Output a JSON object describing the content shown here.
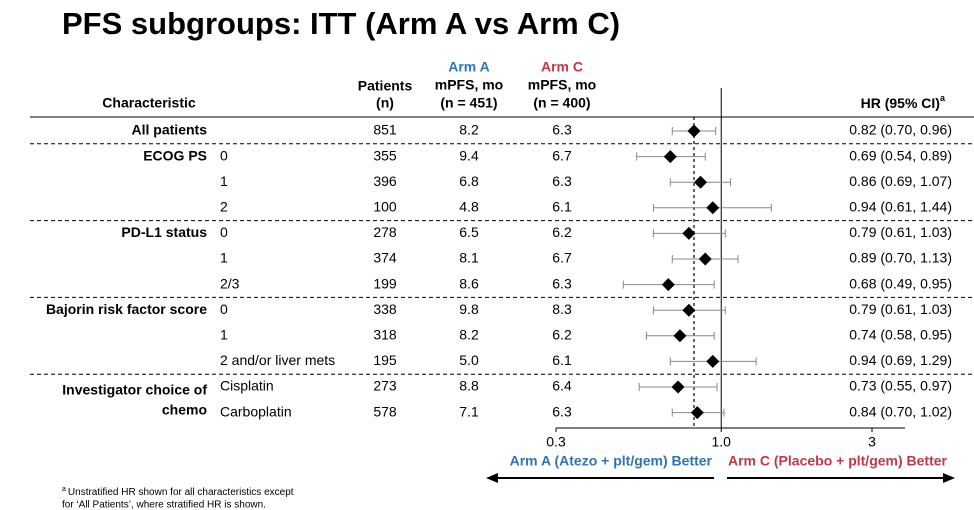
{
  "chart_data": {
    "type": "forest",
    "title": "PFS subgroups: ITT (Arm A vs Arm C)",
    "headers": {
      "characteristic": "Characteristic",
      "patients": [
        "Patients",
        "(n)"
      ],
      "arm_a": [
        "Arm A",
        "mPFS, mo",
        "(n = 451)"
      ],
      "arm_c": [
        "Arm C",
        "mPFS, mo",
        "(n = 400)"
      ],
      "hr": "HR (95% CI)",
      "hr_note": "a"
    },
    "arm_a_color": "#2e75b6",
    "arm_c_color": "#c0394b",
    "groups": [
      {
        "label": [
          "All patients"
        ],
        "rows": [
          {
            "patients": 851,
            "arm_a": "8.2",
            "arm_c": "6.3",
            "hr": 0.82,
            "ci": [
              0.7,
              0.96
            ],
            "hr_label": "0.82 (0.70, 0.96)"
          }
        ]
      },
      {
        "label": [
          "ECOG PS"
        ],
        "rows": [
          {
            "subgroup": "0",
            "patients": 355,
            "arm_a": "9.4",
            "arm_c": "6.7",
            "hr": 0.69,
            "ci": [
              0.54,
              0.89
            ],
            "hr_label": "0.69 (0.54, 0.89)"
          },
          {
            "subgroup": "1",
            "patients": 396,
            "arm_a": "6.8",
            "arm_c": "6.3",
            "hr": 0.86,
            "ci": [
              0.69,
              1.07
            ],
            "hr_label": "0.86 (0.69, 1.07)"
          },
          {
            "subgroup": "2",
            "patients": 100,
            "arm_a": "4.8",
            "arm_c": "6.1",
            "hr": 0.94,
            "ci": [
              0.61,
              1.44
            ],
            "hr_label": "0.94 (0.61, 1.44)"
          }
        ]
      },
      {
        "label": [
          "PD-L1 status"
        ],
        "rows": [
          {
            "subgroup": "0",
            "patients": 278,
            "arm_a": "6.5",
            "arm_c": "6.2",
            "hr": 0.79,
            "ci": [
              0.61,
              1.03
            ],
            "hr_label": "0.79 (0.61, 1.03)"
          },
          {
            "subgroup": "1",
            "patients": 374,
            "arm_a": "8.1",
            "arm_c": "6.7",
            "hr": 0.89,
            "ci": [
              0.7,
              1.13
            ],
            "hr_label": "0.89 (0.70, 1.13)"
          },
          {
            "subgroup": "2/3",
            "patients": 199,
            "arm_a": "8.6",
            "arm_c": "6.3",
            "hr": 0.68,
            "ci": [
              0.49,
              0.95
            ],
            "hr_label": "0.68 (0.49, 0.95)"
          }
        ]
      },
      {
        "label": [
          "Bajorin risk factor score"
        ],
        "rows": [
          {
            "subgroup": "0",
            "patients": 338,
            "arm_a": "9.8",
            "arm_c": "8.3",
            "hr": 0.79,
            "ci": [
              0.61,
              1.03
            ],
            "hr_label": "0.79 (0.61, 1.03)"
          },
          {
            "subgroup": "1",
            "patients": 318,
            "arm_a": "8.2",
            "arm_c": "6.2",
            "hr": 0.74,
            "ci": [
              0.58,
              0.95
            ],
            "hr_label": "0.74 (0.58, 0.95)"
          },
          {
            "subgroup": "2 and/or liver mets",
            "patients": 195,
            "arm_a": "5.0",
            "arm_c": "6.1",
            "hr": 0.94,
            "ci": [
              0.69,
              1.29
            ],
            "hr_label": "0.94 (0.69, 1.29)"
          }
        ]
      },
      {
        "label": [
          "Investigator choice of",
          "chemo"
        ],
        "rows": [
          {
            "subgroup": "Cisplatin",
            "patients": 273,
            "arm_a": "8.8",
            "arm_c": "6.4",
            "hr": 0.73,
            "ci": [
              0.55,
              0.97
            ],
            "hr_label": "0.73 (0.55, 0.97)"
          },
          {
            "subgroup": "Carboplatin",
            "patients": 578,
            "arm_a": "7.1",
            "arm_c": "6.3",
            "hr": 0.84,
            "ci": [
              0.7,
              1.02
            ],
            "hr_label": "0.84 (0.70, 1.02)"
          }
        ]
      }
    ],
    "log_x": true,
    "xlim": [
      0.3,
      3
    ],
    "xticks": [
      0.3,
      {
        "value": 1,
        "label": "1.0"
      },
      3
    ],
    "left_label": "Arm A (Atezo + plt/gem) Better",
    "right_label": "Arm C (Placebo + plt/gem) Better",
    "footnote": {
      "marker": "a",
      "lines": [
        "Unstratified HR shown for all characteristics except",
        "for ‘All Patients’, where stratified HR is shown."
      ]
    }
  }
}
